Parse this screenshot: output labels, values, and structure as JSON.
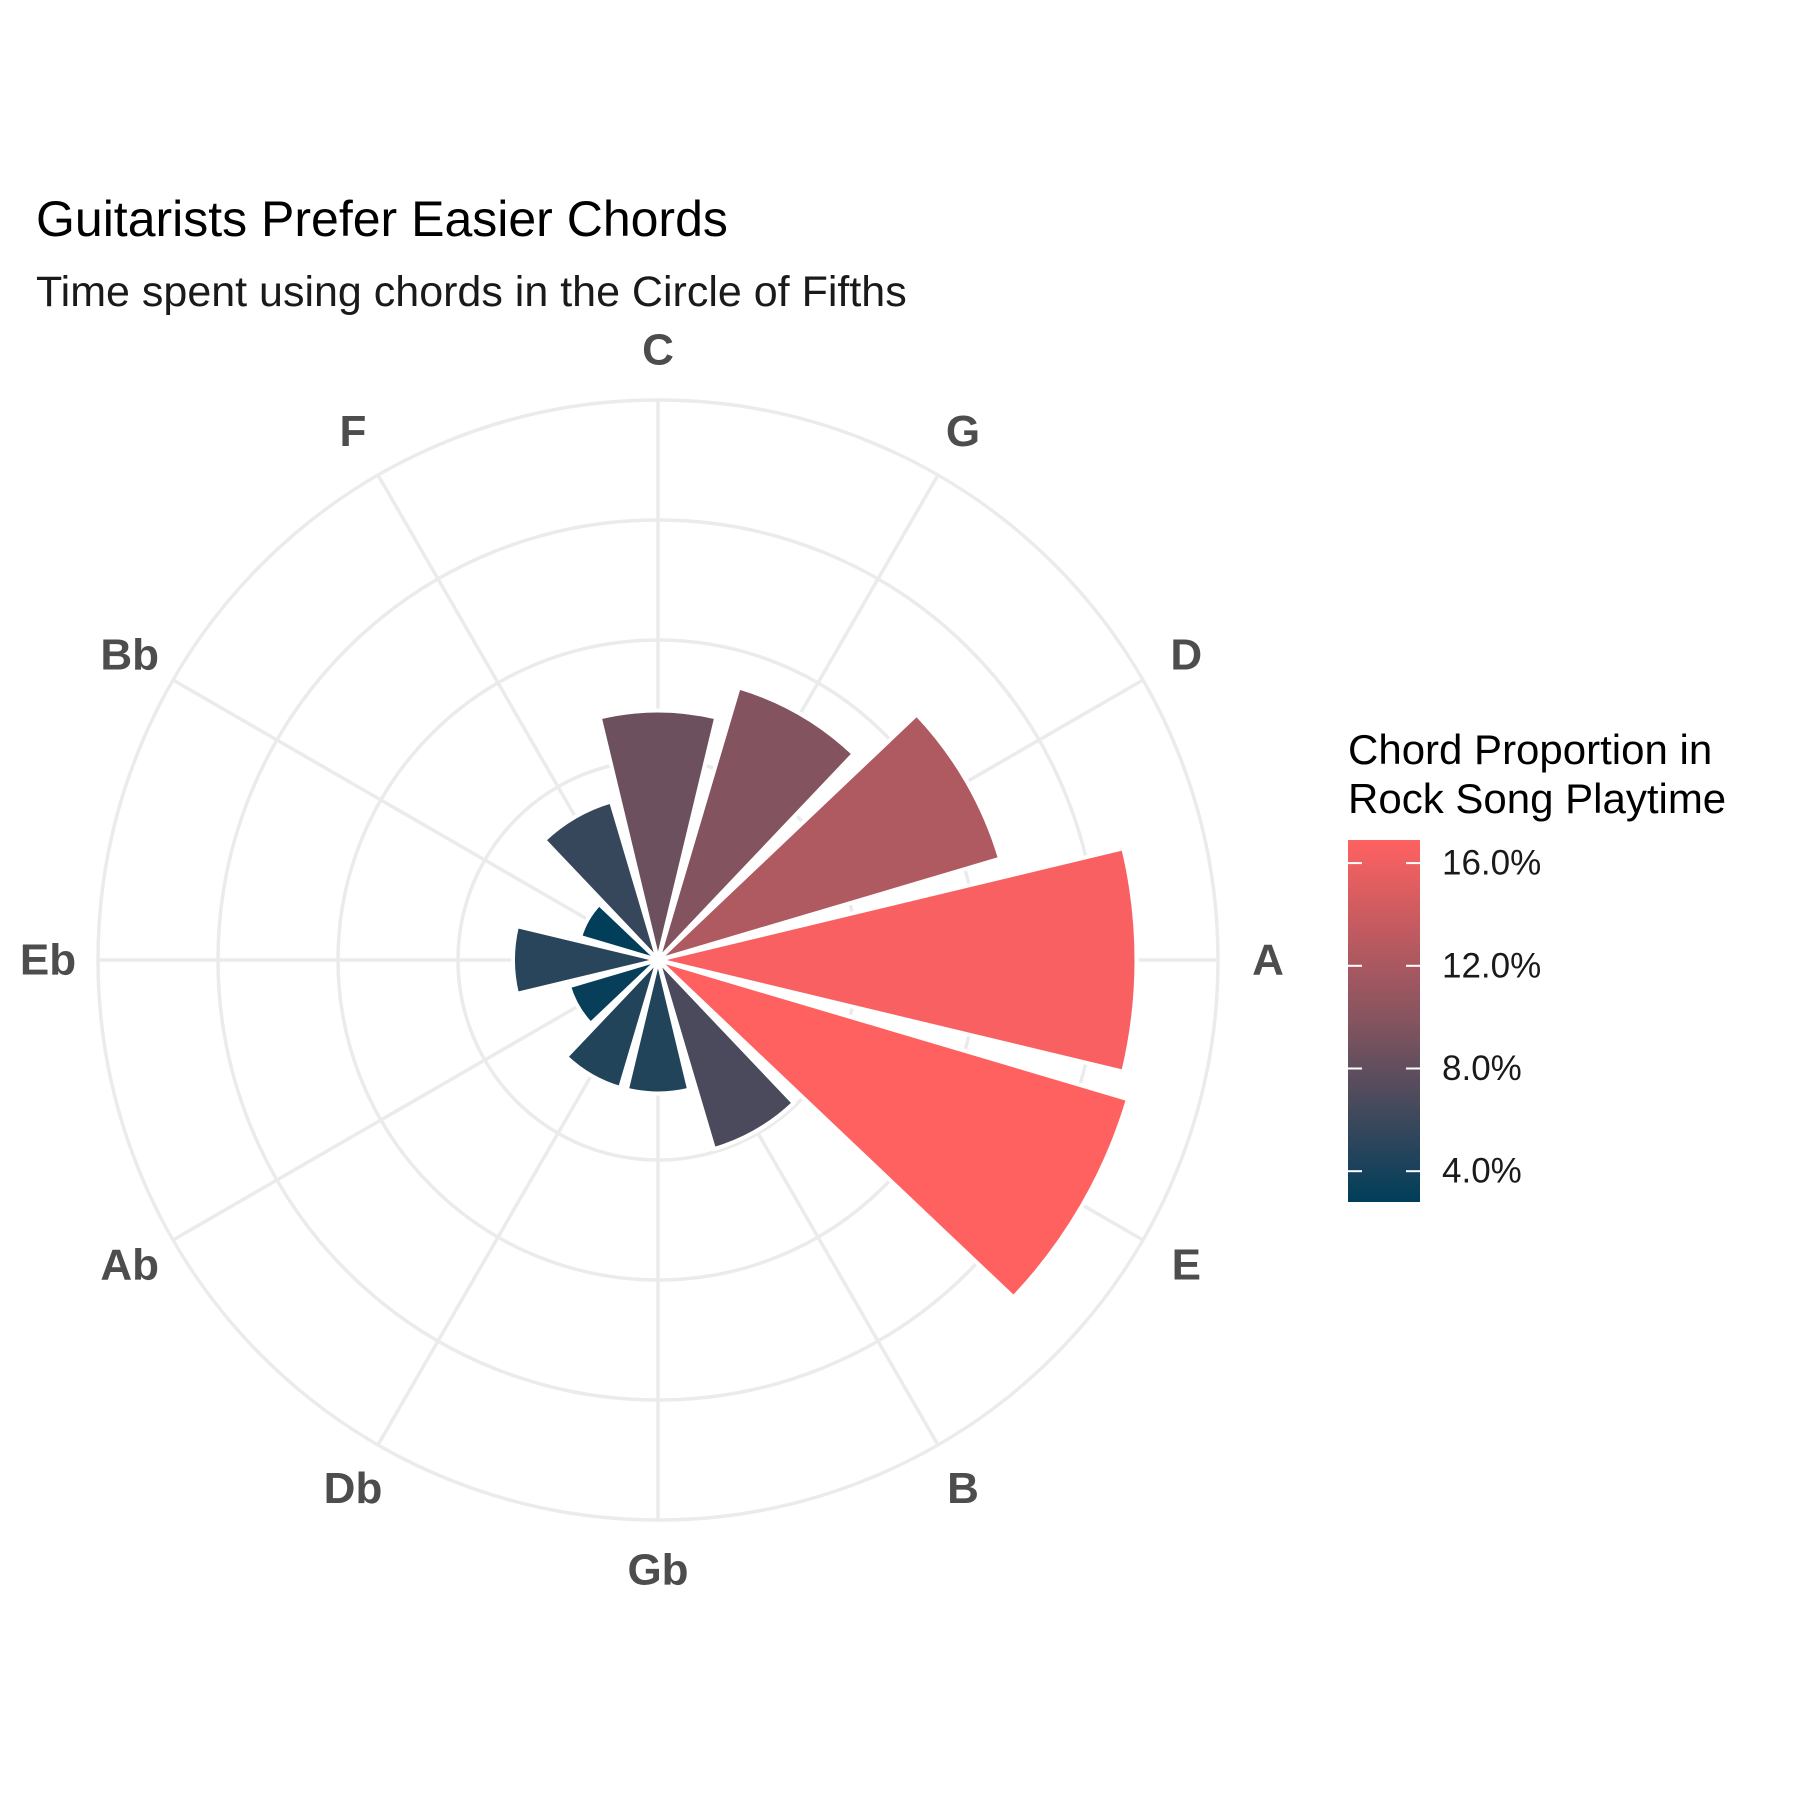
{
  "chart_data": {
    "type": "bar",
    "coord": "polar",
    "title": "Guitarists Prefer Easier Chords",
    "subtitle": "Time spent using chords in the Circle of Fifths",
    "categories": [
      "C",
      "G",
      "D",
      "A",
      "E",
      "B",
      "Gb",
      "Db",
      "Ab",
      "Eb",
      "Bb",
      "F"
    ],
    "values": [
      8.6,
      9.8,
      12.3,
      16.5,
      16.9,
      6.8,
      4.6,
      4.6,
      3.2,
      5.0,
      2.8,
      5.7
    ],
    "legend": {
      "title_lines": [
        "Chord Proportion in",
        "Rock Song Playtime"
      ],
      "ticks": [
        "16.0%",
        "12.0%",
        "8.0%",
        "4.0%"
      ],
      "tick_values": [
        16,
        12,
        8,
        4
      ],
      "range": [
        2.8,
        16.9
      ],
      "placement": "right"
    },
    "colors": {
      "low": "#003e5a",
      "mid": "#84545f",
      "high": "#ff6161"
    },
    "grid": true
  }
}
